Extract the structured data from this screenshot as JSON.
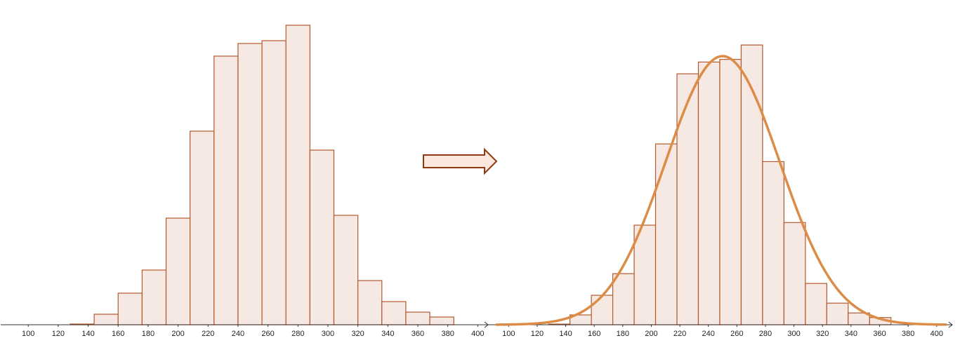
{
  "colors": {
    "bar_fill": "#f6e9e3",
    "bar_stroke": "#b4592d",
    "curve": "#dc8c46",
    "arrow_fill": "#fbe7dd",
    "arrow_stroke": "#8b3a12",
    "axis": "#333333"
  },
  "arrow_icon": "right-arrow-icon",
  "chart_data": [
    {
      "type": "bar",
      "subtype": "histogram",
      "bin_width": 16,
      "bins": [
        {
          "start": 128,
          "end": 144,
          "value": 1
        },
        {
          "start": 144,
          "end": 160,
          "value": 15
        },
        {
          "start": 160,
          "end": 176,
          "value": 45
        },
        {
          "start": 176,
          "end": 192,
          "value": 78
        },
        {
          "start": 192,
          "end": 208,
          "value": 152
        },
        {
          "start": 208,
          "end": 224,
          "value": 276
        },
        {
          "start": 224,
          "end": 240,
          "value": 383
        },
        {
          "start": 240,
          "end": 256,
          "value": 401
        },
        {
          "start": 256,
          "end": 272,
          "value": 405
        },
        {
          "start": 272,
          "end": 288,
          "value": 427
        },
        {
          "start": 288,
          "end": 304,
          "value": 249
        },
        {
          "start": 304,
          "end": 320,
          "value": 156
        },
        {
          "start": 320,
          "end": 336,
          "value": 63
        },
        {
          "start": 336,
          "end": 352,
          "value": 33
        },
        {
          "start": 352,
          "end": 368,
          "value": 18
        },
        {
          "start": 368,
          "end": 384,
          "value": 11
        }
      ],
      "xlim": [
        91,
        405
      ],
      "ylim": [
        0,
        440
      ],
      "x_ticks": [
        "100",
        "120",
        "140",
        "160",
        "180",
        "200",
        "220",
        "240",
        "260",
        "280",
        "300",
        "320",
        "340",
        "360",
        "380",
        "400"
      ],
      "title": "",
      "xlabel": "",
      "ylabel": ""
    },
    {
      "type": "bar",
      "subtype": "histogram with normal curve",
      "bin_width": 15,
      "bins": [
        {
          "start": 128,
          "end": 143,
          "value": 1
        },
        {
          "start": 143,
          "end": 158,
          "value": 15
        },
        {
          "start": 158,
          "end": 173,
          "value": 45
        },
        {
          "start": 173,
          "end": 188,
          "value": 78
        },
        {
          "start": 188,
          "end": 203,
          "value": 152
        },
        {
          "start": 203,
          "end": 218,
          "value": 276
        },
        {
          "start": 218,
          "end": 233,
          "value": 383
        },
        {
          "start": 233,
          "end": 248,
          "value": 401
        },
        {
          "start": 248,
          "end": 263,
          "value": 405
        },
        {
          "start": 263,
          "end": 278,
          "value": 427
        },
        {
          "start": 278,
          "end": 293,
          "value": 249
        },
        {
          "start": 293,
          "end": 308,
          "value": 156
        },
        {
          "start": 308,
          "end": 323,
          "value": 63
        },
        {
          "start": 323,
          "end": 338,
          "value": 33
        },
        {
          "start": 338,
          "end": 353,
          "value": 18
        },
        {
          "start": 353,
          "end": 368,
          "value": 11
        }
      ],
      "curve": {
        "type": "normal",
        "mean": 250,
        "sd": 40,
        "peak": 410
      },
      "xlim": [
        91,
        407
      ],
      "ylim": [
        0,
        440
      ],
      "x_ticks": [
        "100",
        "120",
        "140",
        "160",
        "180",
        "200",
        "220",
        "240",
        "260",
        "280",
        "300",
        "320",
        "340",
        "360",
        "380",
        "400"
      ],
      "title": "",
      "xlabel": "",
      "ylabel": ""
    }
  ]
}
